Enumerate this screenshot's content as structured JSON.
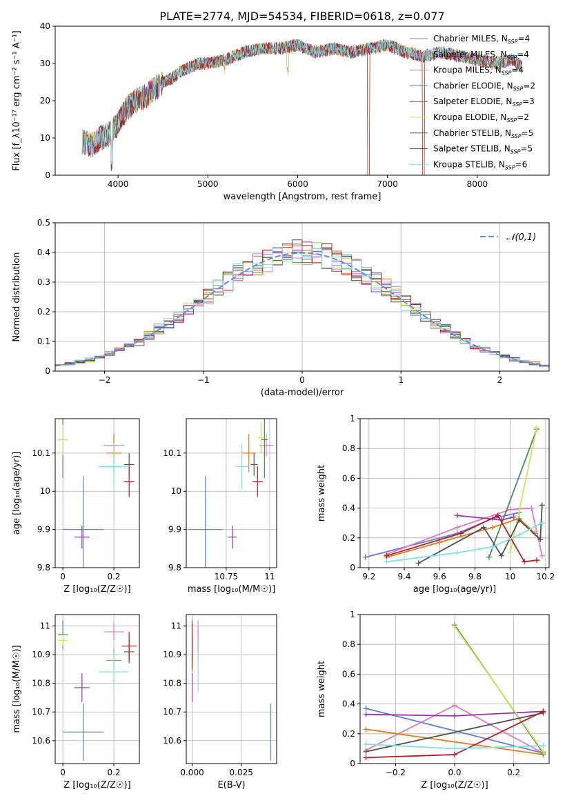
{
  "figure": {
    "title": "PLATE=2774, MJD=54534, FIBERID=0618, z=0.077"
  },
  "models": [
    {
      "name": "Chabrier MILES",
      "nssp": "4",
      "color": "#5b7fd6"
    },
    {
      "name": "Salpeter MILES",
      "nssp": "4",
      "color": "#e377c2"
    },
    {
      "name": "Kroupa MILES",
      "nssp": "4",
      "color": "#e07b1a"
    },
    {
      "name": "Chabrier ELODIE",
      "nssp": "2",
      "color": "#4a8a5a"
    },
    {
      "name": "Salpeter ELODIE",
      "nssp": "3",
      "color": "#9b2fae"
    },
    {
      "name": "Kroupa ELODIE",
      "nssp": "2",
      "color": "#d4e157"
    },
    {
      "name": "Chabrier STELIB",
      "nssp": "5",
      "color": "#505050"
    },
    {
      "name": "Salpeter STELIB",
      "nssp": "5",
      "color": "#b71c1c"
    },
    {
      "name": "Kroupa STELIB",
      "nssp": "6",
      "color": "#80deea"
    }
  ],
  "chart_data": [
    {
      "id": "spectrum",
      "type": "line",
      "xlabel": "wavelength [Angstrom, rest frame]",
      "ylabel": "Flux [f_λ10⁻¹⁷ erg cm⁻² s⁻¹ A⁻¹]",
      "xlim": [
        3300,
        8800
      ],
      "ylim": [
        0,
        40
      ],
      "xticks": [
        4000,
        5000,
        6000,
        7000,
        8000
      ],
      "yticks": [
        0,
        10,
        20,
        30,
        40
      ],
      "legend": "top-right",
      "continuum": {
        "x": [
          3600,
          3700,
          3800,
          3900,
          4000,
          4100,
          4200,
          4300,
          4400,
          4500,
          4600,
          4700,
          4800,
          4900,
          5000,
          5200,
          5400,
          5600,
          5800,
          6000,
          6200,
          6400,
          6600,
          6800,
          7000,
          7200,
          7400,
          7600,
          7800,
          8000,
          8200,
          8400,
          8500
        ],
        "y": [
          9,
          8,
          10,
          11,
          14,
          18,
          20,
          21,
          23,
          25,
          26,
          28,
          29,
          30,
          30,
          31,
          33,
          34,
          34,
          35,
          33,
          34,
          33,
          34,
          35,
          33,
          32,
          33,
          32,
          31,
          30,
          31,
          29
        ]
      },
      "features": [
        {
          "x": 3930,
          "y": 1
        },
        {
          "x": 5180,
          "y": 27
        },
        {
          "x": 5890,
          "y": 26
        },
        {
          "x": 6790,
          "y": 0
        },
        {
          "x": 7400,
          "y": 0
        }
      ]
    },
    {
      "id": "residuals",
      "type": "step",
      "xlabel": "(data-model)/error",
      "ylabel": "Normed distribution",
      "xlim": [
        -2.5,
        2.5
      ],
      "ylim": [
        0,
        0.5
      ],
      "xticks": [
        -2,
        -1,
        0,
        1,
        2
      ],
      "yticks": [
        0.0,
        0.1,
        0.2,
        0.3,
        0.4,
        0.5
      ],
      "bin_width": 0.1,
      "gaussian_label": "𝒩(0,1)",
      "gaussian_color": "#6a8fd8",
      "legend": "top-right"
    },
    {
      "id": "age-vs-Z",
      "type": "errorbar",
      "xlabel": "Z [log₁₀(Z/Z☉)]",
      "ylabel": "age [log₁₀(age/yr)]",
      "xlim": [
        -0.03,
        0.3
      ],
      "ylim": [
        9.8,
        10.19
      ],
      "xticks": [
        0.0,
        0.2
      ],
      "yticks": [
        9.8,
        9.9,
        10.0,
        10.1
      ],
      "points": [
        {
          "x": 0.08,
          "xerr": 0.08,
          "y": 9.9,
          "yerr": 0.14,
          "color": "#5b7fd6"
        },
        {
          "x": 0.2,
          "xerr": 0.04,
          "y": 10.12,
          "yerr": 0.03,
          "color": "#e377c2"
        },
        {
          "x": 0.2,
          "xerr": 0.03,
          "y": 10.1,
          "yerr": 0.05,
          "color": "#e07b1a"
        },
        {
          "x": 0.0,
          "xerr": 0.02,
          "y": 10.135,
          "yerr": 0.1,
          "color": "#4a8a5a"
        },
        {
          "x": 0.075,
          "xerr": 0.03,
          "y": 9.88,
          "yerr": 0.03,
          "color": "#9b2fae"
        },
        {
          "x": 0.0,
          "xerr": 0.02,
          "y": 10.135,
          "yerr": 0.04,
          "color": "#d4e157"
        },
        {
          "x": 0.26,
          "xerr": 0.02,
          "y": 10.07,
          "yerr": 0.03,
          "color": "#505050"
        },
        {
          "x": 0.26,
          "xerr": 0.02,
          "y": 10.025,
          "yerr": 0.04,
          "color": "#b71c1c"
        },
        {
          "x": 0.2,
          "xerr": 0.06,
          "y": 10.065,
          "yerr": 0.06,
          "color": "#80deea"
        }
      ]
    },
    {
      "id": "age-vs-mass",
      "type": "errorbar",
      "xlabel": "mass [log₁₀(M/M☉)]",
      "ylabel": "",
      "xlim": [
        10.52,
        11.04
      ],
      "ylim": [
        9.8,
        10.19
      ],
      "xticks": [
        10.75,
        11.0
      ],
      "yticks": [
        9.8,
        9.9,
        10.0,
        10.1
      ],
      "points": [
        {
          "x": 10.63,
          "xerr": 0.1,
          "y": 9.9,
          "yerr": 0.14,
          "color": "#5b7fd6"
        },
        {
          "x": 10.98,
          "xerr": 0.04,
          "y": 10.12,
          "yerr": 0.03,
          "color": "#e377c2"
        },
        {
          "x": 10.88,
          "xerr": 0.04,
          "y": 10.1,
          "yerr": 0.05,
          "color": "#e07b1a"
        },
        {
          "x": 10.97,
          "xerr": 0.02,
          "y": 10.135,
          "yerr": 0.1,
          "color": "#4a8a5a"
        },
        {
          "x": 10.785,
          "xerr": 0.025,
          "y": 9.88,
          "yerr": 0.03,
          "color": "#9b2fae"
        },
        {
          "x": 10.95,
          "xerr": 0.02,
          "y": 10.14,
          "yerr": 0.04,
          "color": "#d4e157"
        },
        {
          "x": 10.91,
          "xerr": 0.02,
          "y": 10.07,
          "yerr": 0.03,
          "color": "#505050"
        },
        {
          "x": 10.93,
          "xerr": 0.03,
          "y": 10.025,
          "yerr": 0.04,
          "color": "#b71c1c"
        },
        {
          "x": 10.84,
          "xerr": 0.04,
          "y": 10.065,
          "yerr": 0.06,
          "color": "#80deea"
        }
      ]
    },
    {
      "id": "weight-vs-age",
      "type": "line",
      "xlabel": "age [log₁₀(age/yr)]",
      "ylabel": "mass weight",
      "xlim": [
        9.15,
        10.22
      ],
      "ylim": [
        0,
        1.0
      ],
      "xticks": [
        9.2,
        9.4,
        9.6,
        9.8,
        10.0,
        10.2
      ],
      "yticks": [
        0.0,
        0.2,
        0.4,
        0.6,
        0.8,
        1.0
      ],
      "series": [
        {
          "color": "#5b7fd6",
          "x": [
            9.18,
            9.7,
            9.9,
            10.05
          ],
          "y": [
            0.07,
            0.23,
            0.33,
            0.37
          ]
        },
        {
          "color": "#e377c2",
          "x": [
            9.3,
            9.7,
            10.0,
            10.12,
            10.18
          ],
          "y": [
            0.09,
            0.27,
            0.39,
            0.4,
            0.08
          ]
        },
        {
          "color": "#e07b1a",
          "x": [
            9.3,
            9.6,
            9.9,
            10.05,
            10.14
          ],
          "y": [
            0.07,
            0.17,
            0.27,
            0.33,
            0.23
          ]
        },
        {
          "color": "#4a8a5a",
          "x": [
            9.88,
            10.15
          ],
          "y": [
            0.07,
            0.93
          ]
        },
        {
          "color": "#9b2fae",
          "x": [
            9.7,
            9.95,
            10.02
          ],
          "y": [
            0.35,
            0.32,
            0.34
          ]
        },
        {
          "color": "#d4e157",
          "x": [
            10.0,
            10.15
          ],
          "y": [
            0.1,
            0.94
          ]
        },
        {
          "color": "#505050",
          "x": [
            9.48,
            9.85,
            9.95,
            10.05,
            10.17,
            10.18
          ],
          "y": [
            0.03,
            0.27,
            0.08,
            0.32,
            0.19,
            0.42
          ]
        },
        {
          "color": "#b71c1c",
          "x": [
            9.3,
            9.72,
            9.93,
            10.08,
            10.15
          ],
          "y": [
            0.08,
            0.23,
            0.35,
            0.04,
            0.05
          ]
        },
        {
          "color": "#80deea",
          "x": [
            9.3,
            9.7,
            9.9,
            10.05,
            10.18
          ],
          "y": [
            0.04,
            0.1,
            0.14,
            0.22,
            0.3
          ]
        }
      ]
    },
    {
      "id": "mass-vs-Z",
      "type": "errorbar",
      "xlabel": "Z [log₁₀(Z/Z☉)]",
      "ylabel": "mass [log₁₀(M/M☉)]",
      "xlim": [
        -0.03,
        0.3
      ],
      "ylim": [
        10.52,
        11.04
      ],
      "xticks": [
        0.0,
        0.2
      ],
      "yticks": [
        10.6,
        10.7,
        10.8,
        10.9,
        11.0
      ],
      "points": [
        {
          "x": 0.08,
          "xerr": 0.08,
          "y": 10.63,
          "yerr": 0.1,
          "color": "#5b7fd6"
        },
        {
          "x": 0.2,
          "xerr": 0.04,
          "y": 10.98,
          "yerr": 0.03,
          "color": "#e377c2"
        },
        {
          "x": 0.2,
          "xerr": 0.03,
          "y": 10.88,
          "yerr": 0.04,
          "color": "#e07b1a"
        },
        {
          "x": 0.0,
          "xerr": 0.02,
          "y": 10.97,
          "yerr": 0.05,
          "color": "#4a8a5a"
        },
        {
          "x": 0.075,
          "xerr": 0.03,
          "y": 10.785,
          "yerr": 0.05,
          "color": "#9b2fae"
        },
        {
          "x": 0.0,
          "xerr": 0.02,
          "y": 10.95,
          "yerr": 0.02,
          "color": "#d4e157"
        },
        {
          "x": 0.26,
          "xerr": 0.02,
          "y": 10.91,
          "yerr": 0.04,
          "color": "#505050"
        },
        {
          "x": 0.26,
          "xerr": 0.03,
          "y": 10.93,
          "yerr": 0.05,
          "color": "#b71c1c"
        },
        {
          "x": 0.2,
          "xerr": 0.06,
          "y": 10.84,
          "yerr": 0.07,
          "color": "#80deea"
        }
      ]
    },
    {
      "id": "mass-vs-ebv",
      "type": "errorbar",
      "xlabel": "E(B-V)",
      "ylabel": "",
      "xlim": [
        -0.003,
        0.043
      ],
      "ylim": [
        10.52,
        11.04
      ],
      "xticks": [
        0.0,
        0.025
      ],
      "xtick_labels": [
        "0.000",
        "0.025"
      ],
      "yticks": [
        10.6,
        10.7,
        10.8,
        10.9,
        11.0
      ],
      "points": [
        {
          "x": 0.04,
          "xerr": 0,
          "y": 10.63,
          "yerr": 0.1,
          "color": "#5b7fd6"
        },
        {
          "x": 0.003,
          "xerr": 0,
          "y": 10.95,
          "yerr": 0.07,
          "color": "#e377c2"
        },
        {
          "x": 0.0,
          "xerr": 0,
          "y": 10.88,
          "yerr": 0.04,
          "color": "#e07b1a"
        },
        {
          "x": 0.0,
          "xerr": 0,
          "y": 10.97,
          "yerr": 0.05,
          "color": "#4a8a5a"
        },
        {
          "x": 0.0,
          "xerr": 0,
          "y": 10.785,
          "yerr": 0.05,
          "color": "#9b2fae"
        },
        {
          "x": 0.0,
          "xerr": 0,
          "y": 10.95,
          "yerr": 0.02,
          "color": "#d4e157"
        },
        {
          "x": 0.0,
          "xerr": 0,
          "y": 10.91,
          "yerr": 0.04,
          "color": "#505050"
        },
        {
          "x": 0.0,
          "xerr": 0,
          "y": 10.93,
          "yerr": 0.08,
          "color": "#b71c1c"
        },
        {
          "x": 0.003,
          "xerr": 0,
          "y": 10.84,
          "yerr": 0.07,
          "color": "#80deea"
        }
      ]
    },
    {
      "id": "weight-vs-Z",
      "type": "line",
      "xlabel": "Z [log₁₀(Z/Z☉)]",
      "ylabel": "mass weight",
      "xlim": [
        -0.32,
        0.32
      ],
      "ylim": [
        0,
        1.0
      ],
      "xticks": [
        -0.2,
        0.0,
        0.2
      ],
      "xtick_labels": [
        "−0.2",
        "0.0",
        "0.2"
      ],
      "yticks": [
        0.0,
        0.2,
        0.4,
        0.6,
        0.8,
        1.0
      ],
      "series": [
        {
          "color": "#5b7fd6",
          "x": [
            -0.3,
            0.3
          ],
          "y": [
            0.37,
            0.07
          ]
        },
        {
          "color": "#e377c2",
          "x": [
            -0.3,
            0.0,
            0.3
          ],
          "y": [
            0.09,
            0.39,
            0.07
          ]
        },
        {
          "color": "#e07b1a",
          "x": [
            -0.3,
            0.3
          ],
          "y": [
            0.23,
            0.06
          ]
        },
        {
          "color": "#4a8a5a",
          "x": [
            0.0,
            0.3
          ],
          "y": [
            0.93,
            0.07
          ]
        },
        {
          "color": "#9b2fae",
          "x": [
            -0.3,
            0.0,
            0.3
          ],
          "y": [
            0.33,
            0.32,
            0.35
          ]
        },
        {
          "color": "#d4e157",
          "x": [
            0.0,
            0.3
          ],
          "y": [
            0.92,
            0.08
          ]
        },
        {
          "color": "#505050",
          "x": [
            -0.3,
            0.3
          ],
          "y": [
            0.08,
            0.34
          ]
        },
        {
          "color": "#b71c1c",
          "x": [
            -0.3,
            0.0,
            0.3
          ],
          "y": [
            0.04,
            0.06,
            0.35
          ]
        },
        {
          "color": "#80deea",
          "x": [
            -0.3,
            0.0,
            0.3
          ],
          "y": [
            0.13,
            0.1,
            0.12
          ]
        }
      ]
    }
  ]
}
